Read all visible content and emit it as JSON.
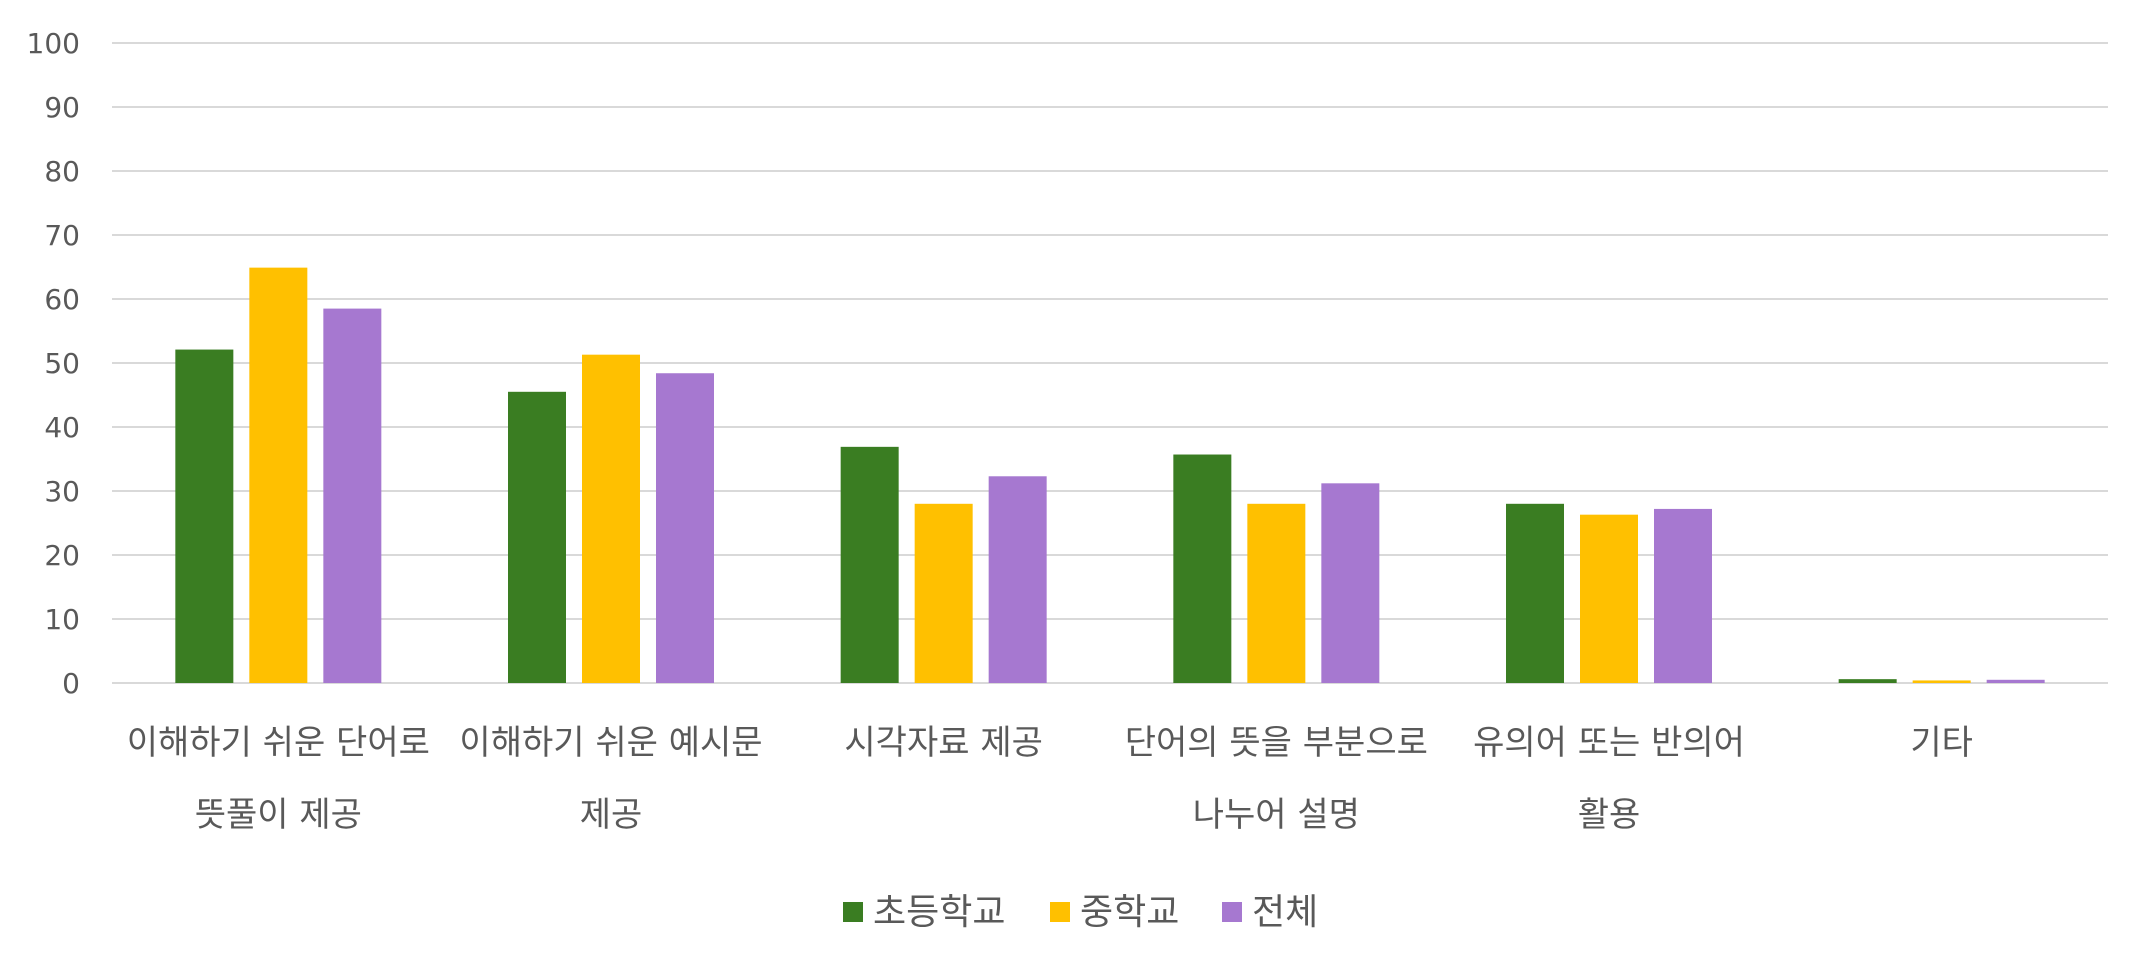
{
  "chart_data": {
    "type": "bar",
    "title": "",
    "xlabel": "",
    "ylabel": "",
    "ylim": [
      0,
      100
    ],
    "yticks": [
      0,
      10,
      20,
      30,
      40,
      50,
      60,
      70,
      80,
      90,
      100
    ],
    "grid": true,
    "legend_position": "bottom",
    "categories": [
      [
        "이해하기 쉬운 단어로",
        "뜻풀이 제공"
      ],
      [
        "이해하기 쉬운 예시문",
        "제공"
      ],
      [
        "시각자료 제공"
      ],
      [
        "단어의 뜻을 부분으로",
        "나누어 설명"
      ],
      [
        "유의어 또는 반의어",
        "활용"
      ],
      [
        "기타"
      ]
    ],
    "series": [
      {
        "name": "초등학교",
        "color": "#3A7D22",
        "values": [
          52.1,
          45.5,
          36.9,
          35.7,
          28.0,
          0.6
        ]
      },
      {
        "name": "중학교",
        "color": "#FFC000",
        "values": [
          64.9,
          51.3,
          28.0,
          28.0,
          26.3,
          0.4
        ]
      },
      {
        "name": "전체",
        "color": "#A678D0",
        "values": [
          58.5,
          48.4,
          32.3,
          31.2,
          27.2,
          0.5
        ]
      }
    ]
  }
}
